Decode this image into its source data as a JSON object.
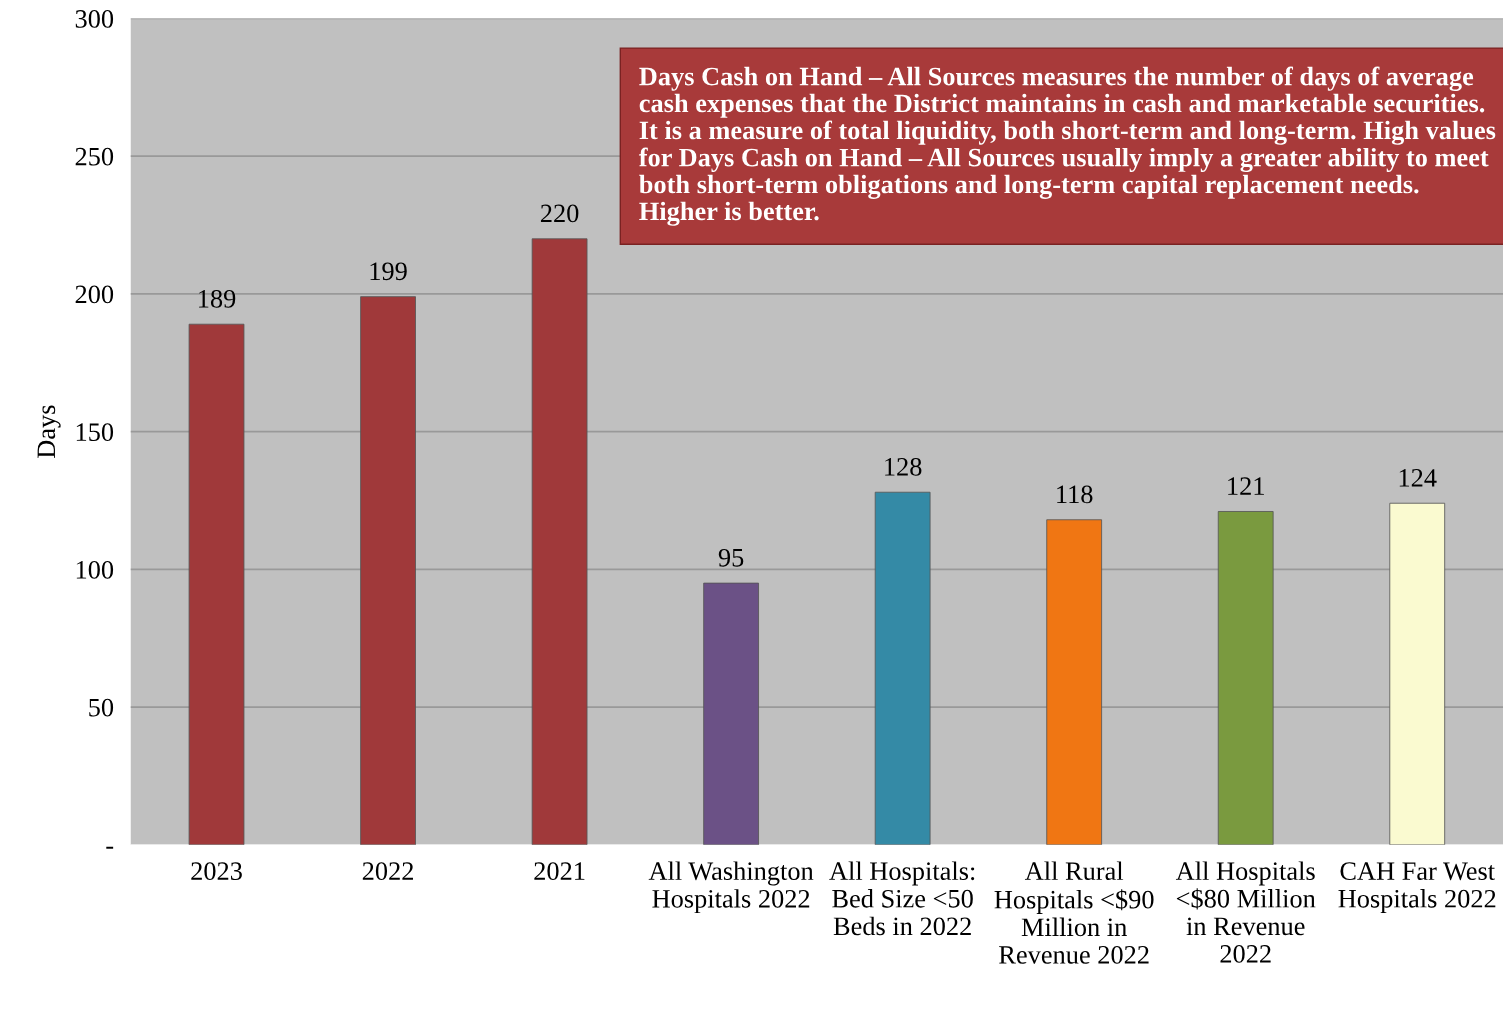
{
  "chart_data": {
    "type": "bar",
    "ylabel": "Days",
    "categories": [
      "2023",
      "2022",
      "2021",
      "All Washington Hospitals 2022",
      "All Hospitals: Bed Size <50 Beds in 2022",
      "All Rural Hospitals <$90 Million in Revenue 2022",
      "All Hospitals <$80 Million in Revenue 2022",
      "CAH Far West Hospitals 2022"
    ],
    "values": [
      189,
      199,
      220,
      95,
      128,
      118,
      121,
      124
    ],
    "colors": [
      "#a0393a",
      "#a0393a",
      "#a0393a",
      "#6b5186",
      "#348aa6",
      "#f07613",
      "#7a9a3f",
      "#fafad0"
    ],
    "ylim": [
      0,
      300
    ],
    "yticks": [
      {
        "value": 0,
        "label": "-"
      },
      50,
      100,
      150,
      200,
      250,
      300
    ],
    "grid": "y",
    "data_labels": true,
    "annotations": [
      "Days Cash on Hand – All Sources measures the number of days of average cash expenses that the District maintains in cash and marketable securities. It is a measure of total liquidity, both short-term and long-term. High values for Days Cash on Hand – All Sources usually imply a greater ability to meet both short-term obligations and long-term capital replacement needs. Higher is better."
    ]
  }
}
